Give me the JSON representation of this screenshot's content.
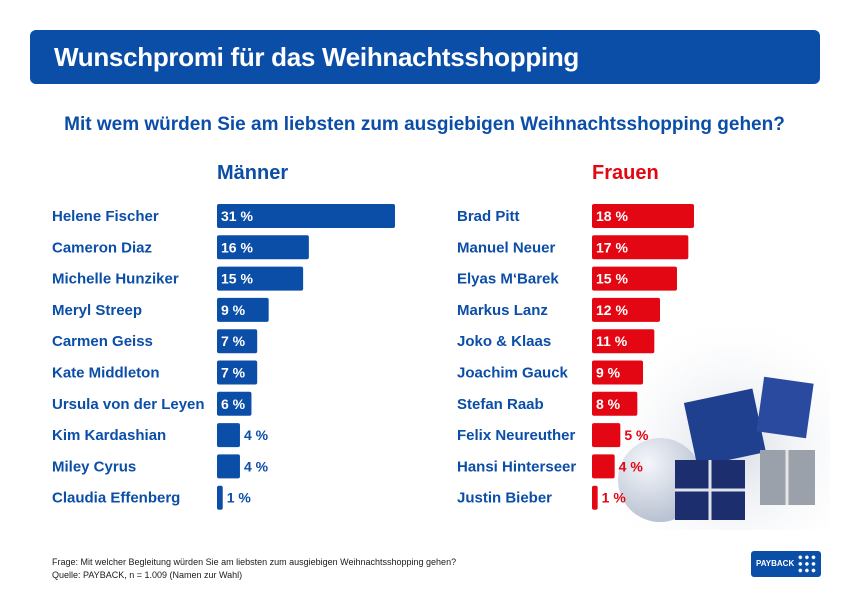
{
  "header": {
    "title": "Wunschpromi für das Weihnachtsshopping"
  },
  "question": "Mit wem würden Sie am liebsten zum ausgiebigen Weihnachtsshopping gehen?",
  "footer": {
    "line1": "Frage: Mit welcher Begleitung würden Sie am liebsten zum ausgiebigen Weihnachtsshopping gehen?",
    "line2": "Quelle: PAYBACK, n = 1.009 (Namen zur Wahl)"
  },
  "logo": {
    "text": "PAYBACK"
  },
  "colors": {
    "maenner": "#0b4ea8",
    "frauen": "#e30613"
  },
  "chart_data": [
    {
      "type": "bar",
      "title": "Männer",
      "categories": [
        "Helene Fischer",
        "Cameron Diaz",
        "Michelle Hunziker",
        "Meryl Streep",
        "Carmen Geiss",
        "Kate Middleton",
        "Ursula von der Leyen",
        "Kim Kardashian",
        "Miley Cyrus",
        "Claudia Effenberg"
      ],
      "values": [
        31,
        16,
        15,
        9,
        7,
        7,
        6,
        4,
        4,
        1
      ],
      "labels": [
        "31 %",
        "16 %",
        "15 %",
        "9 %",
        "7 %",
        "7 %",
        "6 %",
        "4 %",
        "4 %",
        "1 %"
      ],
      "unit": "%"
    },
    {
      "type": "bar",
      "title": "Frauen",
      "categories": [
        "Brad Pitt",
        "Manuel Neuer",
        "Elyas M‘Barek",
        "Markus Lanz",
        "Joko & Klaas",
        "Joachim Gauck",
        "Stefan Raab",
        "Felix Neureuther",
        "Hansi Hinterseer",
        "Justin Bieber"
      ],
      "values": [
        18,
        17,
        15,
        12,
        11,
        9,
        8,
        5,
        4,
        1
      ],
      "labels": [
        "18 %",
        "17 %",
        "15 %",
        "12 %",
        "11 %",
        "9 %",
        "8 %",
        "5 %",
        "4 %",
        "1 %"
      ],
      "unit": "%"
    }
  ]
}
